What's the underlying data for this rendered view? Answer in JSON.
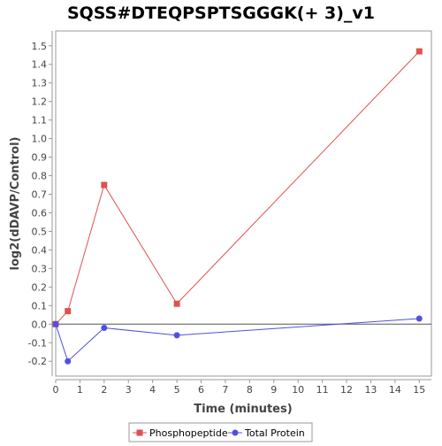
{
  "chart_data": {
    "type": "line",
    "title": "SQSS#DTEQPSPTSGGGK(+ 3)_v1",
    "xlabel": "Time (minutes)",
    "ylabel": "log2(dDAVP/Control)",
    "xlim": [
      0,
      15.5
    ],
    "ylim": [
      -0.28,
      1.58
    ],
    "x_ticks": [
      0,
      1,
      2,
      3,
      4,
      5,
      6,
      7,
      8,
      9,
      10,
      11,
      12,
      13,
      14,
      15
    ],
    "y_ticks": [
      -0.2,
      -0.1,
      0.0,
      0.1,
      0.2,
      0.3,
      0.4,
      0.5,
      0.6,
      0.7,
      0.8,
      0.9,
      1.0,
      1.1,
      1.2,
      1.3,
      1.4,
      1.5
    ],
    "y_tick_labels": [
      "-0.2",
      "-0.1",
      "0.0",
      "0.1",
      "0.2",
      "0.3",
      "0.4",
      "0.5",
      "0.6",
      "0.7",
      "0.8",
      "0.9",
      "1.0",
      "1.1",
      "1.2",
      "1.3",
      "1.4",
      "1.5"
    ],
    "grid": false,
    "zero_line": true,
    "legend_position": "bottom",
    "series": [
      {
        "name": "Phosphopeptide",
        "color": "#e05050",
        "marker": "square",
        "x": [
          0,
          0.5,
          2,
          5,
          15
        ],
        "y": [
          0.0,
          0.07,
          0.75,
          0.11,
          1.47
        ]
      },
      {
        "name": "Total Protein",
        "color": "#5050e0",
        "marker": "circle",
        "x": [
          0,
          0.5,
          2,
          5,
          15
        ],
        "y": [
          0.0,
          -0.2,
          -0.02,
          -0.06,
          0.03
        ]
      }
    ]
  }
}
